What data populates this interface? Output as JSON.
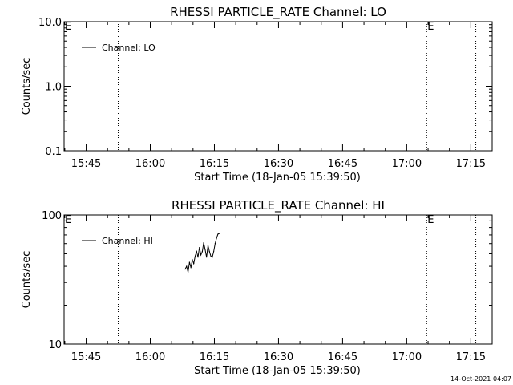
{
  "chart_data": [
    {
      "type": "line",
      "title": "RHESSI PARTICLE_RATE Channel: LO",
      "xlabel": "Start Time (18-Jan-05 15:39:50)",
      "ylabel": "Counts/sec",
      "yscale": "log",
      "ylim": [
        0.1,
        10.0
      ],
      "ytick_values": [
        0.1,
        1.0,
        10.0
      ],
      "ytick_labels": [
        "0.1",
        "1.0",
        "10.0"
      ],
      "xlim": [
        "15:39:50",
        "17:20:00"
      ],
      "xtick_values": [
        "15:45",
        "16:00",
        "16:15",
        "16:30",
        "16:45",
        "17:00",
        "17:15"
      ],
      "xtick_labels": [
        "15:45",
        "16:00",
        "16:15",
        "16:30",
        "16:45",
        "17:00",
        "17:15"
      ],
      "legend_placement": "top-left",
      "vlines": [
        "15:52:30",
        "17:04:40",
        "17:16:10"
      ],
      "event_labels": [
        {
          "time": "15:39:50",
          "text": "E"
        },
        {
          "time": "17:04:40",
          "text": "E"
        }
      ],
      "series": [
        {
          "name": "Channel: LO",
          "x": [],
          "y": []
        }
      ]
    },
    {
      "type": "line",
      "title": "RHESSI PARTICLE_RATE Channel: HI",
      "xlabel": "Start Time (18-Jan-05 15:39:50)",
      "ylabel": "Counts/sec",
      "yscale": "log",
      "ylim": [
        10,
        100
      ],
      "ytick_values": [
        10,
        100
      ],
      "ytick_labels": [
        "10",
        "100"
      ],
      "xlim": [
        "15:39:50",
        "17:20:00"
      ],
      "xtick_values": [
        "15:45",
        "16:00",
        "16:15",
        "16:30",
        "16:45",
        "17:00",
        "17:15"
      ],
      "xtick_labels": [
        "15:45",
        "16:00",
        "16:15",
        "16:30",
        "16:45",
        "17:00",
        "17:15"
      ],
      "legend_placement": "top-left",
      "vlines": [
        "15:52:30",
        "17:04:40",
        "17:16:10"
      ],
      "event_labels": [
        {
          "time": "15:39:50",
          "text": "E"
        },
        {
          "time": "17:04:40",
          "text": "E"
        }
      ],
      "series": [
        {
          "name": "Channel: HI",
          "x": [
            "16:08:10",
            "16:08:30",
            "16:08:50",
            "16:09:10",
            "16:09:30",
            "16:09:50",
            "16:10:10",
            "16:10:30",
            "16:10:50",
            "16:11:10",
            "16:11:30",
            "16:11:50",
            "16:12:10",
            "16:12:30",
            "16:12:50",
            "16:13:10",
            "16:13:30",
            "16:13:50",
            "16:14:10",
            "16:14:30",
            "16:14:50",
            "16:15:10",
            "16:15:30",
            "16:15:50",
            "16:16:10"
          ],
          "y": [
            38,
            40,
            36,
            43,
            39,
            45,
            42,
            48,
            52,
            47,
            56,
            49,
            52,
            61,
            54,
            47,
            58,
            52,
            48,
            47,
            52,
            60,
            66,
            71,
            72
          ]
        }
      ]
    }
  ],
  "footer": {
    "timestamp": "14-Oct-2021 04:07"
  }
}
